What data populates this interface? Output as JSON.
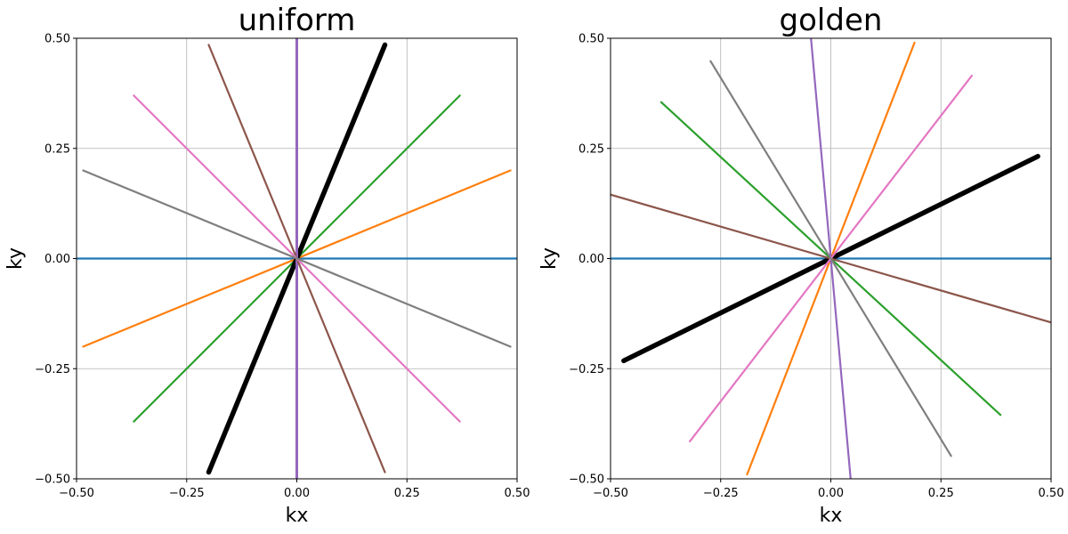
{
  "chart_data": [
    {
      "type": "line",
      "title": "uniform",
      "xlabel": "kx",
      "ylabel": "ky",
      "xlim": [
        -0.5,
        0.5
      ],
      "ylim": [
        -0.5,
        0.5
      ],
      "xticks": [
        -0.5,
        -0.25,
        0.0,
        0.25,
        0.5
      ],
      "yticks": [
        -0.5,
        -0.25,
        0.0,
        0.25,
        0.5
      ],
      "xtick_labels": [
        "−0.50",
        "−0.25",
        "0.00",
        "0.25",
        "0.50"
      ],
      "ytick_labels": [
        "−0.50",
        "−0.25",
        "0.00",
        "0.25",
        "0.50"
      ],
      "grid": true,
      "series": [
        {
          "color": "#1f77b4",
          "x": [
            -0.5,
            0.5
          ],
          "y": [
            0.0,
            0.0
          ],
          "width": 2.2
        },
        {
          "color": "#ff7f0e",
          "x": [
            -0.485,
            0.485
          ],
          "y": [
            -0.2,
            0.2
          ],
          "width": 2.2
        },
        {
          "color": "#2ca02c",
          "x": [
            -0.37,
            0.37
          ],
          "y": [
            -0.37,
            0.37
          ],
          "width": 2.2
        },
        {
          "color": "#000000",
          "x": [
            -0.2,
            0.2
          ],
          "y": [
            -0.485,
            0.485
          ],
          "width": 5.5
        },
        {
          "color": "#9467bd",
          "x": [
            0.0,
            0.0
          ],
          "y": [
            -0.5,
            0.5
          ],
          "width": 3
        },
        {
          "color": "#8c564b",
          "x": [
            -0.2,
            0.2
          ],
          "y": [
            0.485,
            -0.485
          ],
          "width": 2.2
        },
        {
          "color": "#e377c2",
          "x": [
            -0.37,
            0.37
          ],
          "y": [
            0.37,
            -0.37
          ],
          "width": 2.2
        },
        {
          "color": "#7f7f7f",
          "x": [
            -0.485,
            0.485
          ],
          "y": [
            0.2,
            -0.2
          ],
          "width": 2.2
        }
      ]
    },
    {
      "type": "line",
      "title": "golden",
      "xlabel": "kx",
      "ylabel": "ky",
      "xlim": [
        -0.5,
        0.5
      ],
      "ylim": [
        -0.5,
        0.5
      ],
      "xticks": [
        -0.5,
        -0.25,
        0.0,
        0.25,
        0.5
      ],
      "yticks": [
        -0.5,
        -0.25,
        0.0,
        0.25,
        0.5
      ],
      "xtick_labels": [
        "−0.50",
        "−0.25",
        "0.00",
        "0.25",
        "0.50"
      ],
      "ytick_labels": [
        "−0.50",
        "−0.25",
        "0.00",
        "0.25",
        "0.50"
      ],
      "grid": true,
      "series": [
        {
          "color": "#1f77b4",
          "x": [
            -0.5,
            0.5
          ],
          "y": [
            0.0,
            0.0
          ],
          "width": 2.2
        },
        {
          "color": "#ff7f0e",
          "x": [
            -0.19,
            0.19
          ],
          "y": [
            -0.49,
            0.49
          ],
          "width": 2.2
        },
        {
          "color": "#2ca02c",
          "x": [
            -0.385,
            0.385
          ],
          "y": [
            0.355,
            -0.355
          ],
          "width": 2.2
        },
        {
          "color": "#000000",
          "x": [
            -0.47,
            0.47
          ],
          "y": [
            -0.232,
            0.232
          ],
          "width": 5.5
        },
        {
          "color": "#9467bd",
          "x": [
            -0.045,
            0.045
          ],
          "y": [
            0.5,
            -0.5
          ],
          "width": 2.2
        },
        {
          "color": "#8c564b",
          "x": [
            -0.5,
            0.5
          ],
          "y": [
            0.145,
            -0.145
          ],
          "width": 2.2
        },
        {
          "color": "#e377c2",
          "x": [
            -0.32,
            0.32
          ],
          "y": [
            -0.415,
            0.415
          ],
          "width": 2.2
        },
        {
          "color": "#7f7f7f",
          "x": [
            -0.273,
            0.273
          ],
          "y": [
            0.448,
            -0.448
          ],
          "width": 2.2
        }
      ]
    }
  ]
}
